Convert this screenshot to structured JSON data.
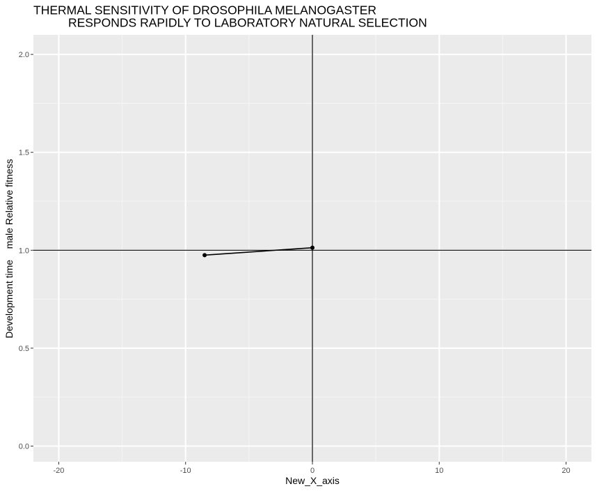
{
  "chart_data": {
    "type": "line",
    "title": "THERMAL SENSITIVITY OF DROSOPHILA MELANOGASTER\n        RESPONDS RAPIDLY TO LABORATORY NATURAL SELECTION",
    "title_lines": [
      "THERMAL SENSITIVITY OF DROSOPHILA MELANOGASTER",
      "RESPONDS RAPIDLY TO LABORATORY NATURAL SELECTION"
    ],
    "xlabel": "New_X_axis",
    "ylabel": "Development time    male Relative fitness",
    "xlim": [
      -22,
      22
    ],
    "ylim": [
      -0.08,
      2.1
    ],
    "x_ticks": [
      -20,
      -10,
      0,
      10,
      20
    ],
    "x_tick_labels": [
      "-20",
      "-10",
      "0",
      "10",
      "20"
    ],
    "y_ticks": [
      0,
      0.5,
      1,
      1.5,
      2
    ],
    "y_tick_labels": [
      "0.0",
      "0.5",
      "1.0",
      "1.5",
      "2.0"
    ],
    "grid": true,
    "reference_lines": {
      "vertical_x": 0,
      "horizontal_y": 1
    },
    "series": [
      {
        "x": [
          -8.5,
          0
        ],
        "y": [
          0.975,
          1.013
        ]
      }
    ],
    "colors": {
      "panel_background": "#ebebeb",
      "grid_major": "#ffffff",
      "grid_minor": "#f5f5f5",
      "line": "#000000",
      "points": "#000000",
      "reference_lines": "#000000",
      "tick_labels": "#4d4d4d",
      "tick_marks": "#333333"
    }
  }
}
